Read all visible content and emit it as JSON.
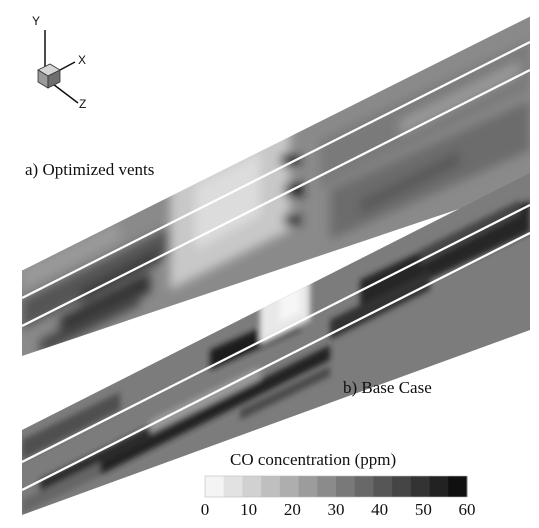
{
  "axes": {
    "y": "Y",
    "x": "X",
    "z": "Z"
  },
  "panels": {
    "a_label": "a) Optimized vents",
    "b_label": "b) Base Case"
  },
  "colorbar": {
    "title": "CO concentration (ppm)",
    "ticks": [
      "0",
      "10",
      "20",
      "30",
      "40",
      "50",
      "60"
    ],
    "min": 0,
    "max": 60,
    "levels": 14,
    "color_low": "#f4f4f4",
    "color_high": "#101010"
  }
}
